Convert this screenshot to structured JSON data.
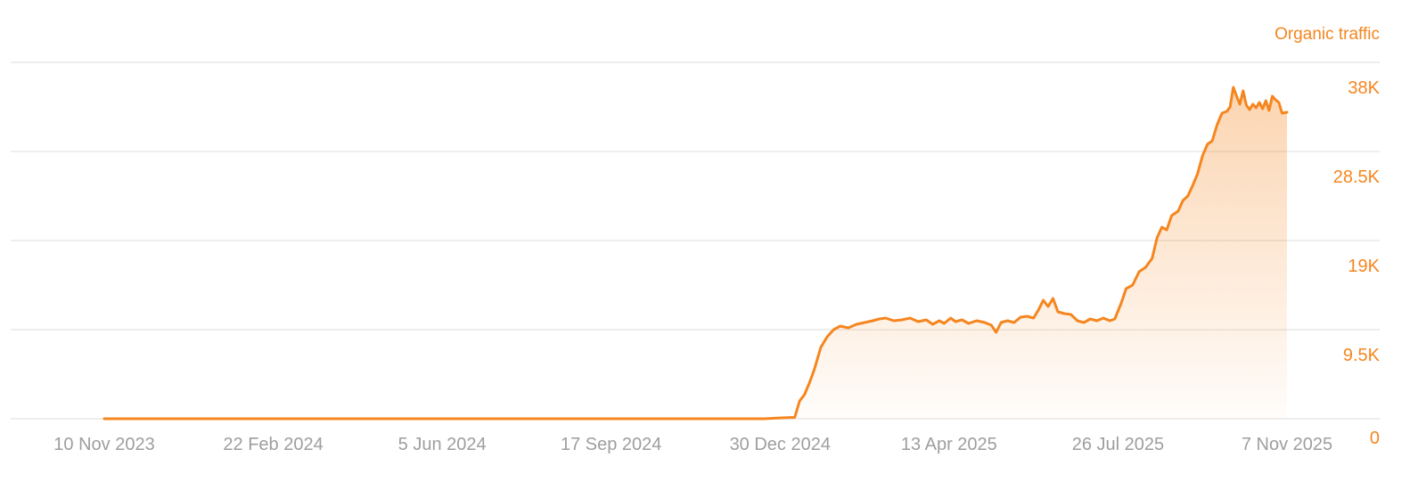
{
  "chart_data": {
    "type": "area",
    "series_label": "Organic traffic",
    "color": "#f5861f",
    "x_ticks": [
      "10 Nov 2023",
      "22 Feb 2024",
      "5 Jun 2024",
      "17 Sep 2024",
      "30 Dec 2024",
      "13 Apr 2025",
      "26 Jul 2025",
      "7 Nov 2025"
    ],
    "y_ticks": [
      "0",
      "9.5K",
      "19K",
      "28.5K",
      "38K"
    ],
    "ylim": [
      0,
      40000
    ],
    "grid": true,
    "series": [
      {
        "values": [
          [
            "2023-11-10",
            0
          ],
          [
            "2024-01-10",
            0
          ],
          [
            "2024-03-10",
            0
          ],
          [
            "2024-05-10",
            0
          ],
          [
            "2024-07-10",
            0
          ],
          [
            "2024-09-10",
            0
          ],
          [
            "2024-11-10",
            0
          ],
          [
            "2024-12-20",
            0
          ],
          [
            "2024-12-31",
            100
          ],
          [
            "2025-01-08",
            150
          ],
          [
            "2025-01-11",
            2000
          ],
          [
            "2025-01-14",
            2700
          ],
          [
            "2025-01-17",
            4000
          ],
          [
            "2025-01-20",
            5500
          ],
          [
            "2025-01-24",
            8000
          ],
          [
            "2025-01-28",
            9200
          ],
          [
            "2025-02-01",
            10000
          ],
          [
            "2025-02-05",
            10400
          ],
          [
            "2025-02-10",
            10200
          ],
          [
            "2025-02-15",
            10600
          ],
          [
            "2025-02-20",
            10800
          ],
          [
            "2025-02-25",
            11000
          ],
          [
            "2025-03-01",
            11200
          ],
          [
            "2025-03-05",
            11300
          ],
          [
            "2025-03-10",
            11000
          ],
          [
            "2025-03-15",
            11100
          ],
          [
            "2025-03-20",
            11300
          ],
          [
            "2025-03-25",
            10900
          ],
          [
            "2025-03-30",
            11100
          ],
          [
            "2025-04-03",
            10600
          ],
          [
            "2025-04-07",
            11000
          ],
          [
            "2025-04-10",
            10700
          ],
          [
            "2025-04-14",
            11300
          ],
          [
            "2025-04-17",
            10900
          ],
          [
            "2025-04-21",
            11100
          ],
          [
            "2025-04-25",
            10700
          ],
          [
            "2025-04-30",
            11000
          ],
          [
            "2025-05-05",
            10800
          ],
          [
            "2025-05-09",
            10500
          ],
          [
            "2025-05-12",
            9700
          ],
          [
            "2025-05-15",
            10800
          ],
          [
            "2025-05-19",
            11000
          ],
          [
            "2025-05-23",
            10800
          ],
          [
            "2025-05-27",
            11400
          ],
          [
            "2025-05-31",
            11500
          ],
          [
            "2025-06-04",
            11300
          ],
          [
            "2025-06-07",
            12200
          ],
          [
            "2025-06-10",
            13300
          ],
          [
            "2025-06-13",
            12600
          ],
          [
            "2025-06-16",
            13500
          ],
          [
            "2025-06-19",
            12000
          ],
          [
            "2025-06-23",
            11800
          ],
          [
            "2025-06-27",
            11700
          ],
          [
            "2025-07-01",
            11000
          ],
          [
            "2025-07-05",
            10800
          ],
          [
            "2025-07-09",
            11200
          ],
          [
            "2025-07-13",
            11000
          ],
          [
            "2025-07-17",
            11300
          ],
          [
            "2025-07-21",
            11000
          ],
          [
            "2025-07-24",
            11200
          ],
          [
            "2025-07-28",
            13000
          ],
          [
            "2025-07-31",
            14600
          ],
          [
            "2025-08-04",
            15000
          ],
          [
            "2025-08-08",
            16500
          ],
          [
            "2025-08-12",
            17000
          ],
          [
            "2025-08-16",
            18000
          ],
          [
            "2025-08-19",
            20300
          ],
          [
            "2025-08-22",
            21500
          ],
          [
            "2025-08-25",
            21200
          ],
          [
            "2025-08-28",
            22800
          ],
          [
            "2025-09-01",
            23300
          ],
          [
            "2025-09-04",
            24500
          ],
          [
            "2025-09-07",
            25000
          ],
          [
            "2025-09-10",
            26200
          ],
          [
            "2025-09-13",
            27500
          ],
          [
            "2025-09-16",
            29500
          ],
          [
            "2025-09-19",
            30800
          ],
          [
            "2025-09-22",
            31200
          ],
          [
            "2025-09-25",
            33000
          ],
          [
            "2025-09-28",
            34300
          ],
          [
            "2025-10-01",
            34500
          ],
          [
            "2025-10-03",
            35000
          ],
          [
            "2025-10-05",
            37200
          ],
          [
            "2025-10-07",
            36200
          ],
          [
            "2025-10-09",
            35300
          ],
          [
            "2025-10-11",
            36800
          ],
          [
            "2025-10-13",
            35200
          ],
          [
            "2025-10-15",
            34700
          ],
          [
            "2025-10-17",
            35300
          ],
          [
            "2025-10-19",
            34900
          ],
          [
            "2025-10-21",
            35500
          ],
          [
            "2025-10-23",
            34800
          ],
          [
            "2025-10-25",
            35700
          ],
          [
            "2025-10-27",
            34600
          ],
          [
            "2025-10-29",
            36200
          ],
          [
            "2025-10-31",
            35800
          ],
          [
            "2025-11-02",
            35500
          ],
          [
            "2025-11-04",
            34300
          ],
          [
            "2025-11-07",
            34400
          ]
        ]
      }
    ]
  }
}
